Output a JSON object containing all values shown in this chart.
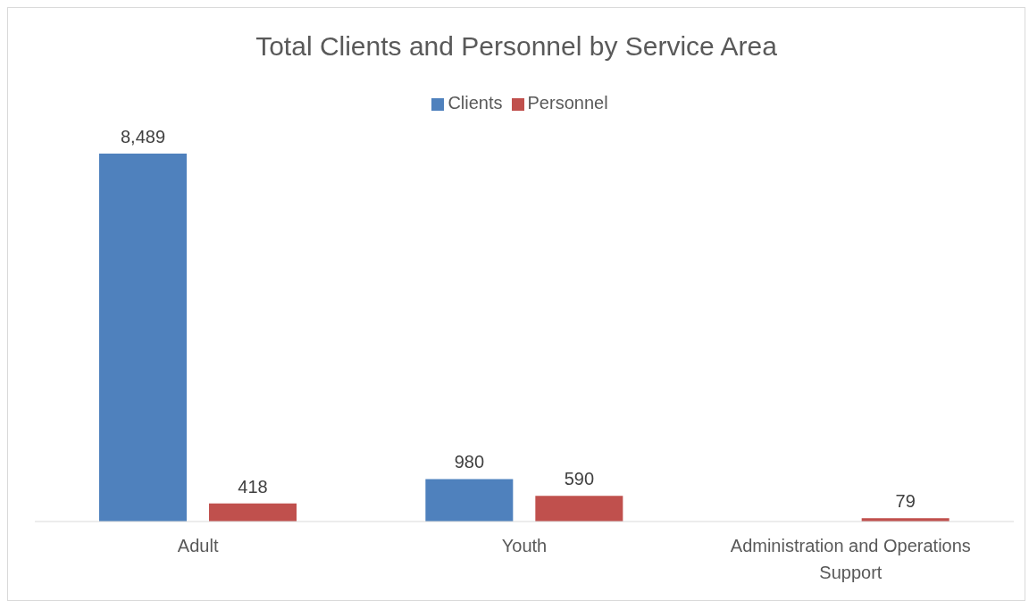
{
  "chart_data": {
    "type": "bar",
    "title": "Total Clients and Personnel by Service Area",
    "categories": [
      "Adult",
      "Youth",
      "Administration and Operations Support"
    ],
    "series": [
      {
        "name": "Clients",
        "color": "#4f81bd",
        "values": [
          8489,
          980,
          null
        ],
        "value_labels": [
          "8,489",
          "980",
          null
        ]
      },
      {
        "name": "Personnel",
        "color": "#c0504d",
        "values": [
          418,
          590,
          79
        ],
        "value_labels": [
          "418",
          "590",
          "79"
        ]
      }
    ],
    "legend": "top"
  }
}
